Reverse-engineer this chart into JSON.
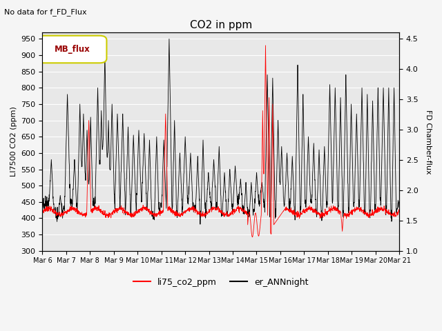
{
  "title": "CO2 in ppm",
  "subtitle": "No data for f_FD_Flux",
  "ylabel_left": "LI7500 CO2 (ppm)",
  "ylabel_right": "FD Chamber-flux",
  "ylim_left": [
    300,
    970
  ],
  "ylim_right": [
    1.0,
    4.6
  ],
  "yticks_left": [
    300,
    350,
    400,
    450,
    500,
    550,
    600,
    650,
    700,
    750,
    800,
    850,
    900,
    950
  ],
  "yticks_right": [
    1.0,
    1.5,
    2.0,
    2.5,
    3.0,
    3.5,
    4.0,
    4.5
  ],
  "color_red": "#ff0000",
  "color_black": "#000000",
  "legend_entries": [
    "li75_co2_ppm",
    "er_ANNnight"
  ],
  "legend_box_label": "MB_flux",
  "legend_box_text_color": "#990000",
  "legend_box_edge_color": "#cccc00",
  "plot_bg": "#e8e8e8",
  "fig_bg": "#f5f5f5",
  "grid_color": "#ffffff",
  "n_points": 2000
}
